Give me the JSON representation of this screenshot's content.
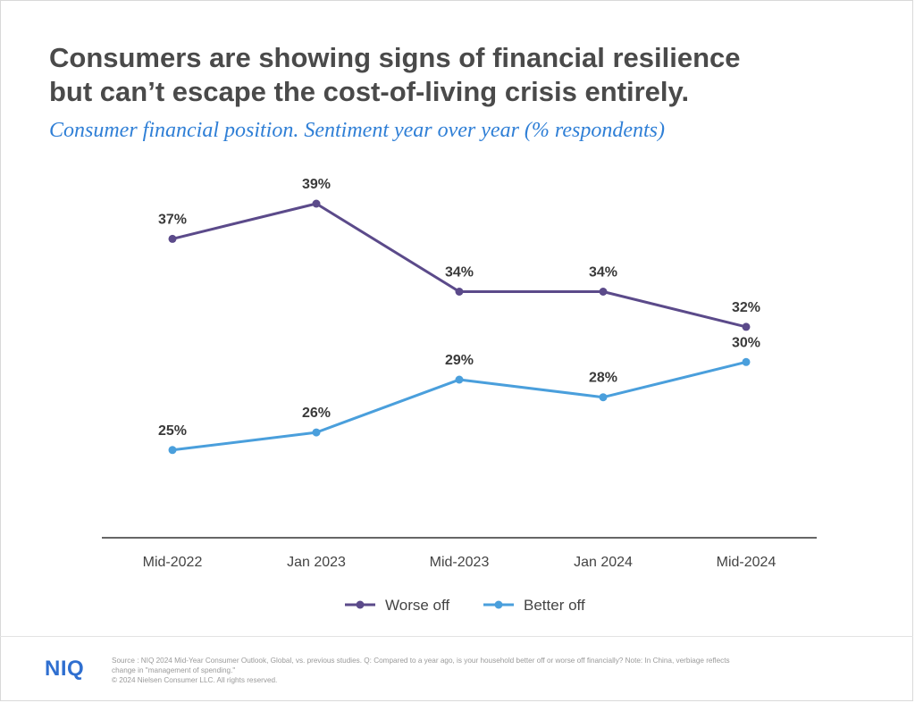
{
  "header": {
    "title_line1": "Consumers are showing signs of financial resilience",
    "title_line2": "but can’t escape the cost-of-living crisis entirely.",
    "subtitle": "Consumer financial position. Sentiment year over year (% respondents)"
  },
  "chart_data": {
    "type": "line",
    "categories": [
      "Mid-2022",
      "Jan 2023",
      "Mid-2023",
      "Jan 2024",
      "Mid-2024"
    ],
    "series": [
      {
        "name": "Worse off",
        "values": [
          37,
          39,
          34,
          34,
          32
        ],
        "labels": [
          "37%",
          "39%",
          "34%",
          "34%",
          "32%"
        ],
        "color": "#5b4a8a"
      },
      {
        "name": "Better off",
        "values": [
          25,
          26,
          29,
          28,
          30
        ],
        "labels": [
          "25%",
          "26%",
          "29%",
          "28%",
          "30%"
        ],
        "color": "#4a9fdc"
      }
    ],
    "legend_position": "bottom-center",
    "grid": false
  },
  "footer": {
    "logo": "NIQ",
    "source_line1": "Source : NIQ 2024 Mid-Year Consumer Outlook, Global, vs. previous studies. Q: Compared to a year ago, is your household better off or worse off financially? Note: In China, verbiage reflects",
    "source_line2": "change in \"management of spending.\"",
    "copyright": "© 2024 Nielsen Consumer LLC. All rights reserved."
  }
}
